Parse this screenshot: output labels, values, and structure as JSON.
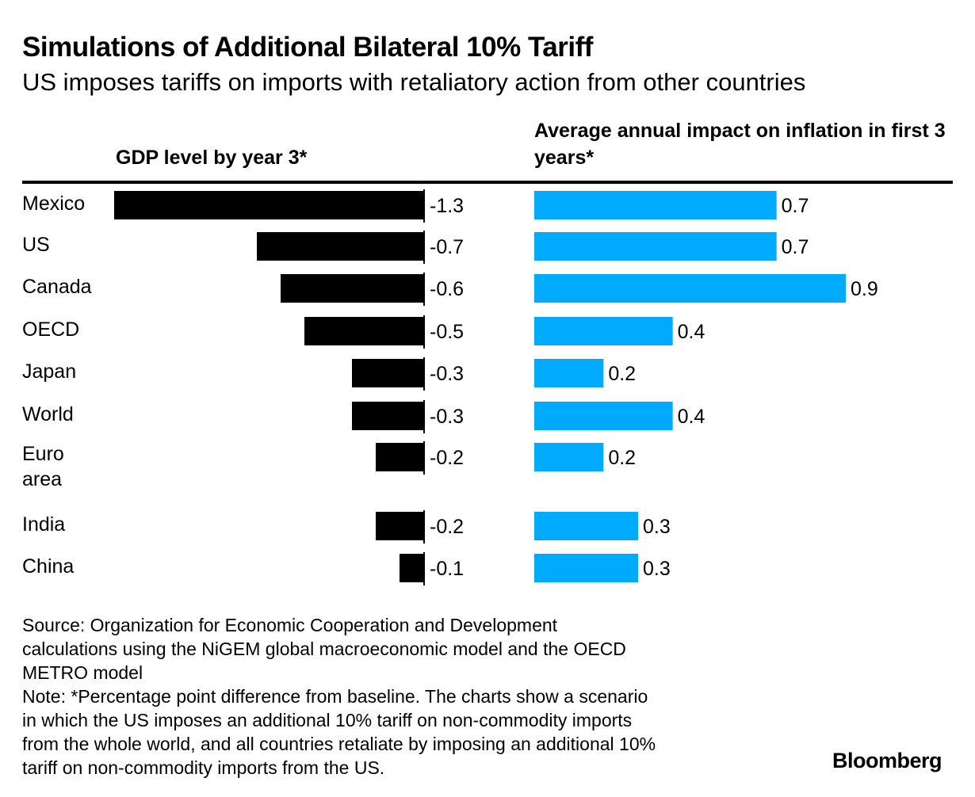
{
  "header": {
    "title": "Simulations of Additional Bilateral 10% Tariff",
    "subtitle": "US imposes tariffs on imports with retaliatory action from other countries"
  },
  "chart_data": [
    {
      "type": "bar",
      "orientation": "horizontal",
      "title": "GDP level by year 3*",
      "categories": [
        "Mexico",
        "US",
        "Canada",
        "OECD",
        "Japan",
        "World",
        "Euro area",
        "India",
        "China"
      ],
      "values": [
        -1.3,
        -0.7,
        -0.6,
        -0.5,
        -0.3,
        -0.3,
        -0.2,
        -0.2,
        -0.1
      ],
      "value_labels": [
        "-1.3",
        "-0.7",
        "-0.6",
        "-0.5",
        "-0.3",
        "-0.3",
        "-0.2",
        "-0.2",
        "-0.1"
      ],
      "color": "#000000",
      "xlim": [
        -1.3,
        0
      ]
    },
    {
      "type": "bar",
      "orientation": "horizontal",
      "title": "Average annual impact on inflation in first 3 years*",
      "categories": [
        "Mexico",
        "US",
        "Canada",
        "OECD",
        "Japan",
        "World",
        "Euro area",
        "India",
        "China"
      ],
      "values": [
        0.7,
        0.7,
        0.9,
        0.4,
        0.2,
        0.4,
        0.2,
        0.3,
        0.3
      ],
      "value_labels": [
        "0.7",
        "0.7",
        "0.9",
        "0.4",
        "0.2",
        "0.4",
        "0.2",
        "0.3",
        "0.3"
      ],
      "color": "#00AAFF",
      "xlim": [
        0,
        0.9
      ]
    }
  ],
  "footer": {
    "source_lines": [
      "Source: Organization for Economic Cooperation and Development",
      "calculations using the NiGEM global macroeconomic model and the OECD",
      "METRO model"
    ],
    "note_lines": [
      "Note: *Percentage point difference from baseline. The charts show a scenario",
      "in which the US imposes an additional 10% tariff on non-commodity imports",
      "from the whole world, and all countries retaliate by imposing an additional 10%",
      "tariff on non-commodity imports from the US."
    ],
    "logo": "Bloomberg"
  }
}
